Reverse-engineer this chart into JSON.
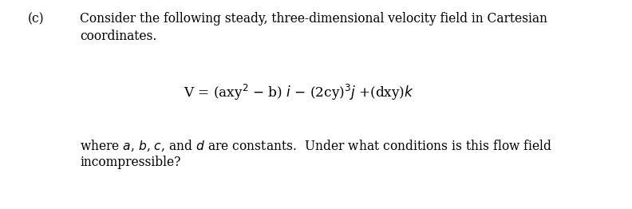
{
  "bg_color": "#ffffff",
  "text_color": "#000000",
  "font_size": 11.2,
  "font_family": "serif",
  "label_c": "(c)",
  "line1": "Consider the following steady, three-dimensional velocity field in Cartesian",
  "line2": "coordinates.",
  "line3": "where $a$, $b$, $c$, and $d$ are constants.  Under what conditions is this flow field",
  "line4": "incompressible?",
  "eq": "V = (axy² – b) $i$ – (2cy)³$j$ +(dxy)$k$"
}
